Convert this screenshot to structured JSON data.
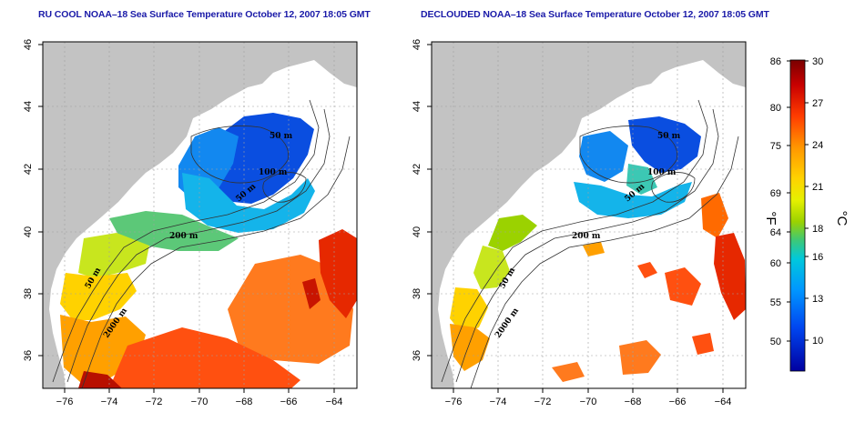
{
  "panels": [
    {
      "title": "RU COOL NOAA–18 Sea Surface Temperature October 12, 2007 18:05 GMT"
    },
    {
      "title": "DECLOUDED NOAA–18 Sea Surface Temperature October 12, 2007 18:05 GMT"
    }
  ],
  "axes": {
    "lon_ticks": [
      "−76",
      "−74",
      "−72",
      "−70",
      "−68",
      "−66",
      "−64"
    ],
    "lat_ticks": [
      "36",
      "38",
      "40",
      "42",
      "44",
      "46"
    ]
  },
  "contour_labels": {
    "left": [
      "50 m",
      "100 m",
      "50 m",
      "200 m",
      "50 m",
      "2000 m"
    ],
    "right": [
      "50 m",
      "100 m",
      "50 m",
      "200 m",
      "50 m",
      "2000 m"
    ]
  },
  "colorbar": {
    "fahrenheit_ticks": [
      "86",
      "80",
      "75",
      "69",
      "64",
      "60",
      "55",
      "50"
    ],
    "celsius_ticks": [
      "30",
      "27",
      "24",
      "21",
      "18",
      "16",
      "13",
      "10"
    ],
    "fahrenheit_unit": "°F",
    "celsius_unit": "°C",
    "colors": [
      "#7a0000",
      "#c80000",
      "#ff3c00",
      "#ff9600",
      "#ffd200",
      "#e6f000",
      "#9bd200",
      "#3cc878",
      "#00c8dc",
      "#0096ff",
      "#0046f0",
      "#0000a0"
    ]
  },
  "colors": {
    "land": "#c3c3c3",
    "no_data": "#ffffff",
    "title": "#1a1aa8"
  }
}
